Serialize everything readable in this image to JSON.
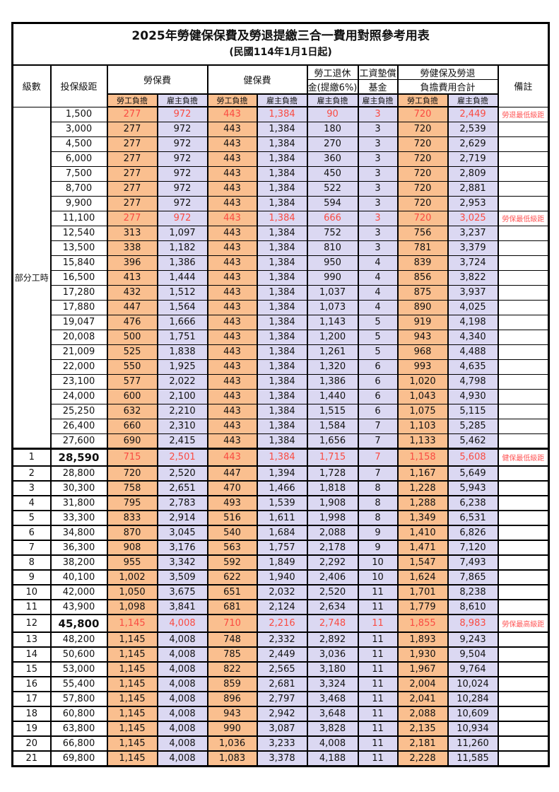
{
  "title": "2025年勞健保保費及勞退提繳三合一費用對照參考用表",
  "subtitle": "(民國114年1月1日起)",
  "header": {
    "level": "級數",
    "bracket": "投保級距",
    "labor_fee": "勞保費",
    "health_fee": "健保費",
    "pension_line1": "勞工退休",
    "pension_line2": "金(提繳6%)",
    "wage_fund_line1": "工資墊償",
    "wage_fund_line2": "基金",
    "total_line1": "勞健保及勞退",
    "total_line2": "負擔費用合計",
    "note": "備註",
    "employee": "勞工負擔",
    "employer": "雇主負擔"
  },
  "part_time_label": "部分工時",
  "colors": {
    "employee_bg": "#FABF8F",
    "employer_bg": "#DBD8F2",
    "highlight_red": "#FA4B42",
    "note_red": "#FF5555",
    "border": "#000000"
  },
  "value_columns": [
    "cell-labor-fee-employee",
    "cell-labor-fee-employer",
    "cell-health-fee-employee",
    "cell-health-fee-employer",
    "cell-pension-employer",
    "cell-wage-fund-employer",
    "cell-total-employee",
    "cell-total-employer"
  ],
  "rows": [
    {
      "level": "",
      "bracket": "1,500",
      "values": [
        "277",
        "972",
        "443",
        "1,384",
        "90",
        "3",
        "720",
        "2,449"
      ],
      "note": "勞退最低級距",
      "red": true
    },
    {
      "level": "",
      "bracket": "3,000",
      "values": [
        "277",
        "972",
        "443",
        "1,384",
        "180",
        "3",
        "720",
        "2,539"
      ],
      "note": ""
    },
    {
      "level": "",
      "bracket": "4,500",
      "values": [
        "277",
        "972",
        "443",
        "1,384",
        "270",
        "3",
        "720",
        "2,629"
      ],
      "note": ""
    },
    {
      "level": "",
      "bracket": "6,000",
      "values": [
        "277",
        "972",
        "443",
        "1,384",
        "360",
        "3",
        "720",
        "2,719"
      ],
      "note": ""
    },
    {
      "level": "",
      "bracket": "7,500",
      "values": [
        "277",
        "972",
        "443",
        "1,384",
        "450",
        "3",
        "720",
        "2,809"
      ],
      "note": ""
    },
    {
      "level": "",
      "bracket": "8,700",
      "values": [
        "277",
        "972",
        "443",
        "1,384",
        "522",
        "3",
        "720",
        "2,881"
      ],
      "note": ""
    },
    {
      "level": "",
      "bracket": "9,900",
      "values": [
        "277",
        "972",
        "443",
        "1,384",
        "594",
        "3",
        "720",
        "2,953"
      ],
      "note": ""
    },
    {
      "level": "",
      "bracket": "11,100",
      "values": [
        "277",
        "972",
        "443",
        "1,384",
        "666",
        "3",
        "720",
        "3,025"
      ],
      "note": "勞保最低級距",
      "red": true
    },
    {
      "level": "",
      "bracket": "12,540",
      "values": [
        "313",
        "1,097",
        "443",
        "1,384",
        "752",
        "3",
        "756",
        "3,237"
      ],
      "note": ""
    },
    {
      "level": "",
      "bracket": "13,500",
      "values": [
        "338",
        "1,182",
        "443",
        "1,384",
        "810",
        "3",
        "781",
        "3,379"
      ],
      "note": ""
    },
    {
      "level": "",
      "bracket": "15,840",
      "values": [
        "396",
        "1,386",
        "443",
        "1,384",
        "950",
        "4",
        "839",
        "3,724"
      ],
      "note": ""
    },
    {
      "level": "",
      "bracket": "16,500",
      "values": [
        "413",
        "1,444",
        "443",
        "1,384",
        "990",
        "4",
        "856",
        "3,822"
      ],
      "note": ""
    },
    {
      "level": "",
      "bracket": "17,280",
      "values": [
        "432",
        "1,512",
        "443",
        "1,384",
        "1,037",
        "4",
        "875",
        "3,937"
      ],
      "note": ""
    },
    {
      "level": "",
      "bracket": "17,880",
      "values": [
        "447",
        "1,564",
        "443",
        "1,384",
        "1,073",
        "4",
        "890",
        "4,025"
      ],
      "note": ""
    },
    {
      "level": "",
      "bracket": "19,047",
      "values": [
        "476",
        "1,666",
        "443",
        "1,384",
        "1,143",
        "5",
        "919",
        "4,198"
      ],
      "note": ""
    },
    {
      "level": "",
      "bracket": "20,008",
      "values": [
        "500",
        "1,751",
        "443",
        "1,384",
        "1,200",
        "5",
        "943",
        "4,340"
      ],
      "note": ""
    },
    {
      "level": "",
      "bracket": "21,009",
      "values": [
        "525",
        "1,838",
        "443",
        "1,384",
        "1,261",
        "5",
        "968",
        "4,488"
      ],
      "note": ""
    },
    {
      "level": "",
      "bracket": "22,000",
      "values": [
        "550",
        "1,925",
        "443",
        "1,384",
        "1,320",
        "6",
        "993",
        "4,635"
      ],
      "note": ""
    },
    {
      "level": "",
      "bracket": "23,100",
      "values": [
        "577",
        "2,022",
        "443",
        "1,384",
        "1,386",
        "6",
        "1,020",
        "4,798"
      ],
      "note": ""
    },
    {
      "level": "",
      "bracket": "24,000",
      "values": [
        "600",
        "2,100",
        "443",
        "1,384",
        "1,440",
        "6",
        "1,043",
        "4,930"
      ],
      "note": ""
    },
    {
      "level": "",
      "bracket": "25,250",
      "values": [
        "632",
        "2,210",
        "443",
        "1,384",
        "1,515",
        "6",
        "1,075",
        "5,115"
      ],
      "note": ""
    },
    {
      "level": "",
      "bracket": "26,400",
      "values": [
        "660",
        "2,310",
        "443",
        "1,384",
        "1,584",
        "7",
        "1,103",
        "5,285"
      ],
      "note": ""
    },
    {
      "level": "",
      "bracket": "27,600",
      "values": [
        "690",
        "2,415",
        "443",
        "1,384",
        "1,656",
        "7",
        "1,133",
        "5,462"
      ],
      "note": ""
    },
    {
      "level": "1",
      "bracket": "28,590",
      "values": [
        "715",
        "2,501",
        "443",
        "1,384",
        "1,715",
        "7",
        "1,158",
        "5,608"
      ],
      "note": "健保最低級距",
      "red": true,
      "big": true
    },
    {
      "level": "2",
      "bracket": "28,800",
      "values": [
        "720",
        "2,520",
        "447",
        "1,394",
        "1,728",
        "7",
        "1,167",
        "5,649"
      ],
      "note": ""
    },
    {
      "level": "3",
      "bracket": "30,300",
      "values": [
        "758",
        "2,651",
        "470",
        "1,466",
        "1,818",
        "8",
        "1,228",
        "5,943"
      ],
      "note": ""
    },
    {
      "level": "4",
      "bracket": "31,800",
      "values": [
        "795",
        "2,783",
        "493",
        "1,539",
        "1,908",
        "8",
        "1,288",
        "6,238"
      ],
      "note": ""
    },
    {
      "level": "5",
      "bracket": "33,300",
      "values": [
        "833",
        "2,914",
        "516",
        "1,611",
        "1,998",
        "8",
        "1,349",
        "6,531"
      ],
      "note": ""
    },
    {
      "level": "6",
      "bracket": "34,800",
      "values": [
        "870",
        "3,045",
        "540",
        "1,684",
        "2,088",
        "9",
        "1,410",
        "6,826"
      ],
      "note": ""
    },
    {
      "level": "7",
      "bracket": "36,300",
      "values": [
        "908",
        "3,176",
        "563",
        "1,757",
        "2,178",
        "9",
        "1,471",
        "7,120"
      ],
      "note": ""
    },
    {
      "level": "8",
      "bracket": "38,200",
      "values": [
        "955",
        "3,342",
        "592",
        "1,849",
        "2,292",
        "10",
        "1,547",
        "7,493"
      ],
      "note": ""
    },
    {
      "level": "9",
      "bracket": "40,100",
      "values": [
        "1,002",
        "3,509",
        "622",
        "1,940",
        "2,406",
        "10",
        "1,624",
        "7,865"
      ],
      "note": ""
    },
    {
      "level": "10",
      "bracket": "42,000",
      "values": [
        "1,050",
        "3,675",
        "651",
        "2,032",
        "2,520",
        "11",
        "1,701",
        "8,238"
      ],
      "note": ""
    },
    {
      "level": "11",
      "bracket": "43,900",
      "values": [
        "1,098",
        "3,841",
        "681",
        "2,124",
        "2,634",
        "11",
        "1,779",
        "8,610"
      ],
      "note": ""
    },
    {
      "level": "12",
      "bracket": "45,800",
      "values": [
        "1,145",
        "4,008",
        "710",
        "2,216",
        "2,748",
        "11",
        "1,855",
        "8,983"
      ],
      "note": "勞保最高級距",
      "red": true,
      "big": true
    },
    {
      "level": "13",
      "bracket": "48,200",
      "values": [
        "1,145",
        "4,008",
        "748",
        "2,332",
        "2,892",
        "11",
        "1,893",
        "9,243"
      ],
      "note": ""
    },
    {
      "level": "14",
      "bracket": "50,600",
      "values": [
        "1,145",
        "4,008",
        "785",
        "2,449",
        "3,036",
        "11",
        "1,930",
        "9,504"
      ],
      "note": ""
    },
    {
      "level": "15",
      "bracket": "53,000",
      "values": [
        "1,145",
        "4,008",
        "822",
        "2,565",
        "3,180",
        "11",
        "1,967",
        "9,764"
      ],
      "note": ""
    },
    {
      "level": "16",
      "bracket": "55,400",
      "values": [
        "1,145",
        "4,008",
        "859",
        "2,681",
        "3,324",
        "11",
        "2,004",
        "10,024"
      ],
      "note": ""
    },
    {
      "level": "17",
      "bracket": "57,800",
      "values": [
        "1,145",
        "4,008",
        "896",
        "2,797",
        "3,468",
        "11",
        "2,041",
        "10,284"
      ],
      "note": ""
    },
    {
      "level": "18",
      "bracket": "60,800",
      "values": [
        "1,145",
        "4,008",
        "943",
        "2,942",
        "3,648",
        "11",
        "2,088",
        "10,609"
      ],
      "note": ""
    },
    {
      "level": "19",
      "bracket": "63,800",
      "values": [
        "1,145",
        "4,008",
        "990",
        "3,087",
        "3,828",
        "11",
        "2,135",
        "10,934"
      ],
      "note": ""
    },
    {
      "level": "20",
      "bracket": "66,800",
      "values": [
        "1,145",
        "4,008",
        "1,036",
        "3,233",
        "4,008",
        "11",
        "2,181",
        "11,260"
      ],
      "note": ""
    },
    {
      "level": "21",
      "bracket": "69,800",
      "values": [
        "1,145",
        "4,008",
        "1,083",
        "3,378",
        "4,188",
        "11",
        "2,228",
        "11,585"
      ],
      "note": ""
    }
  ]
}
